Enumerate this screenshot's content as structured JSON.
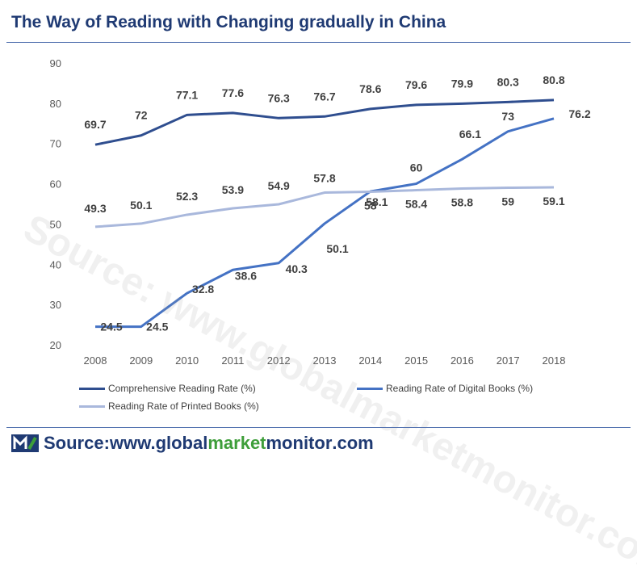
{
  "page": {
    "title": "The Way of Reading with Changing gradually in China",
    "watermark": "Source: www.globalmarketmonitor.com",
    "footer": {
      "label": "Source: ",
      "url_prefix": "www.",
      "url_part_1": "global",
      "url_part_2": "market",
      "url_part_3": "monitor",
      "url_suffix": ".com"
    },
    "colors": {
      "title": "#1F3A73",
      "rule": "#4F6FAE",
      "footer_dark": "#1F3A73",
      "footer_green": "#3E9E3A"
    }
  },
  "chart_data": {
    "type": "line",
    "title": "The Way of Reading with Changing gradually in China",
    "xlabel": "",
    "ylabel": "",
    "categories": [
      "2008",
      "2009",
      "2010",
      "2011",
      "2012",
      "2013",
      "2014",
      "2015",
      "2016",
      "2017",
      "2018"
    ],
    "ylim": [
      20,
      90
    ],
    "yticks": [
      20,
      30,
      40,
      50,
      60,
      70,
      80,
      90
    ],
    "grid": false,
    "legend_position": "bottom",
    "series": [
      {
        "name": "Comprehensive Reading Rate (%)",
        "color": "#2F4E8F",
        "values": [
          69.7,
          72,
          77.1,
          77.6,
          76.3,
          76.7,
          78.6,
          79.6,
          79.9,
          80.3,
          80.8
        ]
      },
      {
        "name": "Reading Rate of Digital Books (%)",
        "color": "#4472C4",
        "values": [
          24.5,
          24.5,
          32.8,
          38.6,
          40.3,
          50.1,
          58.1,
          60,
          66.1,
          73,
          76.2
        ]
      },
      {
        "name": "Reading Rate of Printed Books (%)",
        "color": "#A9B8DC",
        "values": [
          49.3,
          50.1,
          52.3,
          53.9,
          54.9,
          57.8,
          58,
          58.4,
          58.8,
          59,
          59.1
        ]
      }
    ]
  }
}
